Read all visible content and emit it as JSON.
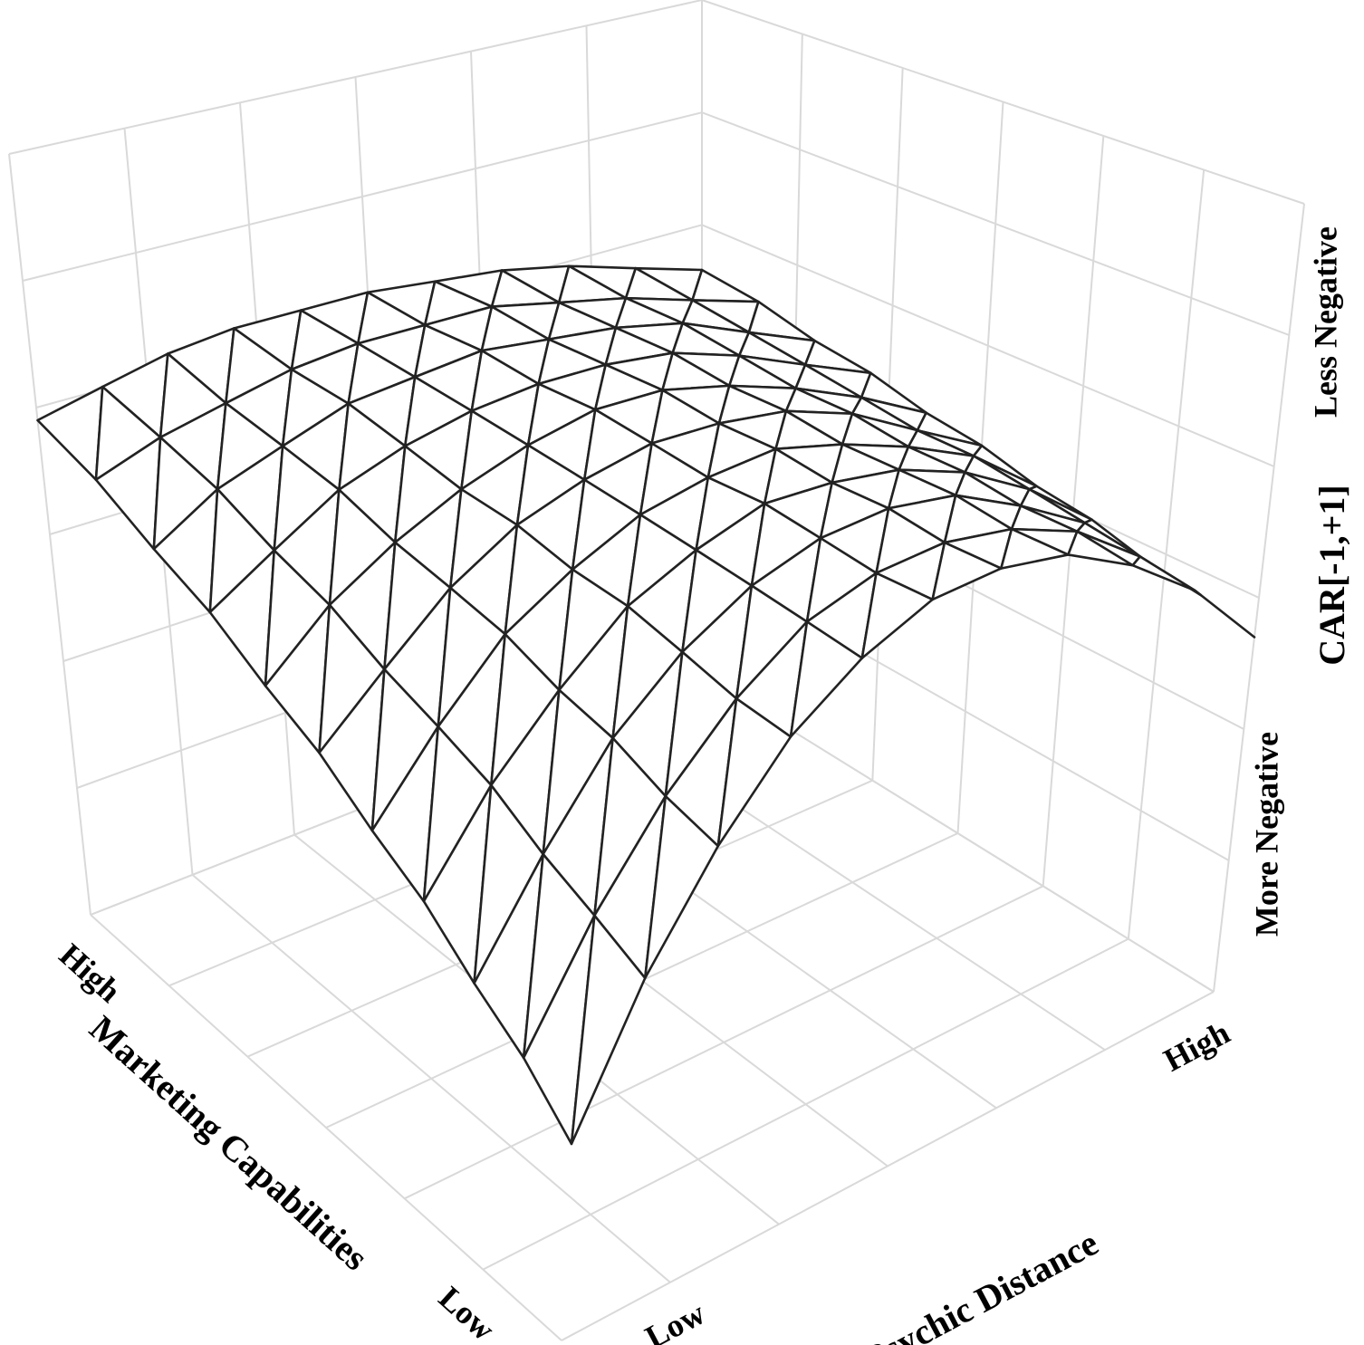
{
  "chart_data": {
    "type": "surface",
    "x_label": "Marketing Capabilities",
    "y_label": "Psychic Distance",
    "z_label": "CAR[-1,+1]",
    "xlim": [
      0,
      1
    ],
    "ylim": [
      0,
      1
    ],
    "zlim": [
      0,
      1
    ],
    "xticks": [
      {
        "value": 0.1,
        "label": "Low"
      },
      {
        "value": 0.9,
        "label": "High"
      }
    ],
    "yticks": [
      {
        "value": 0.1,
        "label": "Low"
      },
      {
        "value": 0.9,
        "label": "High"
      }
    ],
    "zticks": [
      {
        "value": 0.2,
        "label": "More Negative"
      },
      {
        "value": 0.85,
        "label": "Less Negative"
      }
    ],
    "x": [
      0,
      0.1,
      0.2,
      0.3,
      0.4,
      0.5,
      0.6,
      0.7,
      0.8,
      0.9,
      1
    ],
    "y": [
      0,
      0.1,
      0.2,
      0.3,
      0.4,
      0.5,
      0.6,
      0.7,
      0.8,
      0.9,
      1
    ],
    "z": [
      [
        0.2,
        0.34,
        0.45,
        0.54,
        0.6,
        0.64,
        0.65,
        0.64,
        0.6,
        0.54,
        0.45
      ],
      [
        0.25,
        0.37,
        0.47,
        0.55,
        0.61,
        0.64,
        0.65,
        0.64,
        0.61,
        0.55,
        0.47
      ],
      [
        0.29,
        0.4,
        0.5,
        0.57,
        0.62,
        0.65,
        0.66,
        0.65,
        0.61,
        0.56,
        0.48
      ],
      [
        0.34,
        0.44,
        0.52,
        0.59,
        0.63,
        0.66,
        0.66,
        0.65,
        0.62,
        0.57,
        0.5
      ],
      [
        0.38,
        0.47,
        0.55,
        0.6,
        0.64,
        0.66,
        0.67,
        0.65,
        0.62,
        0.58,
        0.51
      ],
      [
        0.43,
        0.5,
        0.57,
        0.62,
        0.65,
        0.67,
        0.67,
        0.66,
        0.63,
        0.58,
        0.53
      ],
      [
        0.47,
        0.54,
        0.59,
        0.63,
        0.66,
        0.68,
        0.68,
        0.66,
        0.63,
        0.59,
        0.54
      ],
      [
        0.52,
        0.57,
        0.62,
        0.65,
        0.67,
        0.68,
        0.68,
        0.67,
        0.64,
        0.6,
        0.56
      ],
      [
        0.56,
        0.61,
        0.64,
        0.67,
        0.68,
        0.69,
        0.68,
        0.67,
        0.65,
        0.61,
        0.57
      ],
      [
        0.61,
        0.64,
        0.66,
        0.68,
        0.69,
        0.69,
        0.69,
        0.67,
        0.65,
        0.62,
        0.59
      ],
      [
        0.65,
        0.67,
        0.69,
        0.7,
        0.7,
        0.7,
        0.69,
        0.68,
        0.66,
        0.63,
        0.6
      ]
    ],
    "color": "#222222"
  }
}
